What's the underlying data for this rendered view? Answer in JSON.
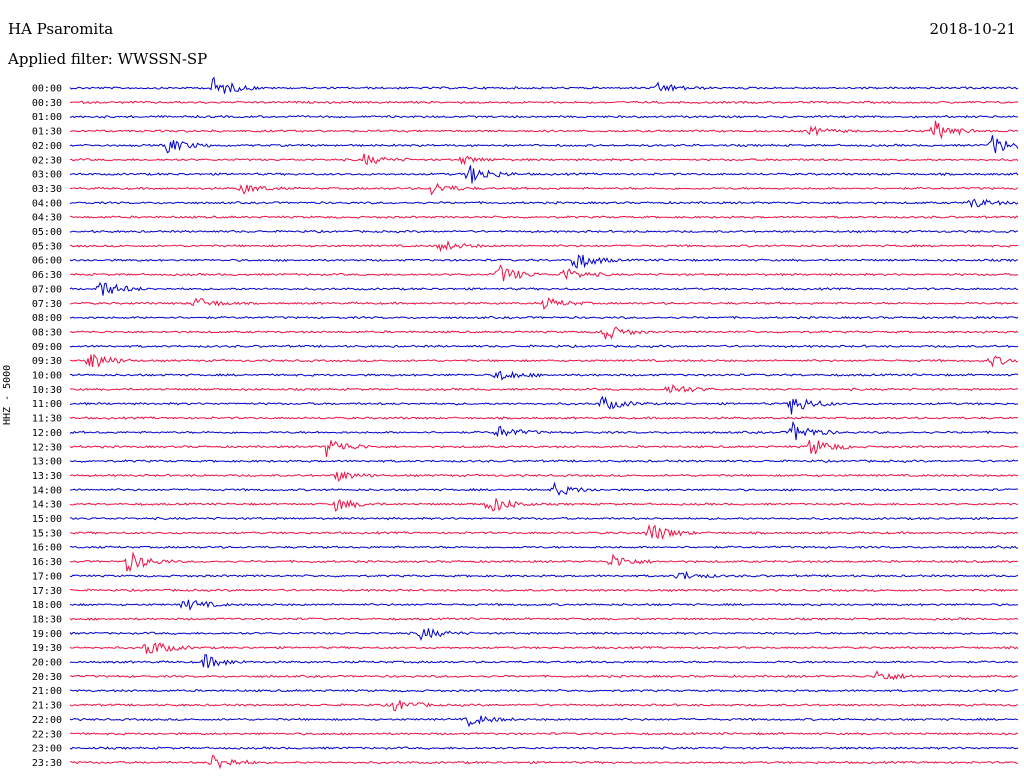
{
  "header": {
    "station": "HA Psaromita",
    "date": "2018-10-21",
    "filter": "Applied filter: WWSSN-SP"
  },
  "axis": {
    "ylabel": "HHZ - 5000"
  },
  "colors": {
    "even_trace": "#0000cc",
    "odd_trace": "#ee1144",
    "background": "#ffffff",
    "text": "#000000"
  },
  "chart_data": {
    "type": "line",
    "title": "HA Psaromita",
    "subtitle": "Applied filter: WWSSN-SP",
    "ylabel": "HHZ - 5000",
    "xlabel": "",
    "tick_labels": [
      "00:00",
      "00:30",
      "01:00",
      "01:30",
      "02:00",
      "02:30",
      "03:00",
      "03:30",
      "04:00",
      "04:30",
      "05:00",
      "05:30",
      "06:00",
      "06:30",
      "07:00",
      "07:30",
      "08:00",
      "08:30",
      "09:00",
      "09:30",
      "10:00",
      "10:30",
      "11:00",
      "11:30",
      "12:00",
      "12:30",
      "13:00",
      "13:30",
      "14:00",
      "14:30",
      "15:00",
      "15:30",
      "16:00",
      "16:30",
      "17:00",
      "17:30",
      "18:00",
      "18:30",
      "19:00",
      "19:30",
      "20:00",
      "20:30",
      "21:00",
      "21:30",
      "22:00",
      "22:30",
      "23:00",
      "23:30"
    ],
    "events": [
      {
        "row": "00:00",
        "t": 0.15,
        "amp": 1.0
      },
      {
        "row": "00:00",
        "t": 0.62,
        "amp": 0.5
      },
      {
        "row": "01:30",
        "t": 0.78,
        "amp": 0.4
      },
      {
        "row": "01:30",
        "t": 0.91,
        "amp": 1.0
      },
      {
        "row": "02:00",
        "t": 0.1,
        "amp": 0.8
      },
      {
        "row": "02:00",
        "t": 0.97,
        "amp": 1.0
      },
      {
        "row": "02:30",
        "t": 0.31,
        "amp": 0.5
      },
      {
        "row": "02:30",
        "t": 0.41,
        "amp": 0.4
      },
      {
        "row": "03:00",
        "t": 0.42,
        "amp": 1.0
      },
      {
        "row": "03:30",
        "t": 0.18,
        "amp": 0.5
      },
      {
        "row": "03:30",
        "t": 0.38,
        "amp": 0.6
      },
      {
        "row": "04:00",
        "t": 0.95,
        "amp": 0.5
      },
      {
        "row": "05:30",
        "t": 0.39,
        "amp": 0.5
      },
      {
        "row": "06:00",
        "t": 0.53,
        "amp": 1.0
      },
      {
        "row": "06:30",
        "t": 0.45,
        "amp": 1.0
      },
      {
        "row": "06:30",
        "t": 0.52,
        "amp": 0.6
      },
      {
        "row": "07:00",
        "t": 0.03,
        "amp": 0.9
      },
      {
        "row": "07:30",
        "t": 0.13,
        "amp": 0.6
      },
      {
        "row": "07:30",
        "t": 0.5,
        "amp": 0.5
      },
      {
        "row": "08:30",
        "t": 0.56,
        "amp": 0.9
      },
      {
        "row": "09:30",
        "t": 0.02,
        "amp": 0.9
      },
      {
        "row": "09:30",
        "t": 0.97,
        "amp": 0.5
      },
      {
        "row": "10:00",
        "t": 0.45,
        "amp": 0.6
      },
      {
        "row": "10:30",
        "t": 0.63,
        "amp": 0.6
      },
      {
        "row": "11:00",
        "t": 0.56,
        "amp": 0.7
      },
      {
        "row": "11:00",
        "t": 0.76,
        "amp": 1.0
      },
      {
        "row": "12:00",
        "t": 0.45,
        "amp": 0.6
      },
      {
        "row": "12:00",
        "t": 0.76,
        "amp": 1.0
      },
      {
        "row": "12:30",
        "t": 0.27,
        "amp": 0.9
      },
      {
        "row": "12:30",
        "t": 0.78,
        "amp": 0.9
      },
      {
        "row": "13:30",
        "t": 0.28,
        "amp": 0.5
      },
      {
        "row": "14:00",
        "t": 0.51,
        "amp": 0.6
      },
      {
        "row": "14:30",
        "t": 0.28,
        "amp": 0.6
      },
      {
        "row": "14:30",
        "t": 0.44,
        "amp": 1.0
      },
      {
        "row": "15:30",
        "t": 0.61,
        "amp": 1.0
      },
      {
        "row": "16:30",
        "t": 0.06,
        "amp": 1.0
      },
      {
        "row": "16:30",
        "t": 0.57,
        "amp": 0.7
      },
      {
        "row": "17:00",
        "t": 0.64,
        "amp": 0.5
      },
      {
        "row": "18:00",
        "t": 0.12,
        "amp": 0.6
      },
      {
        "row": "19:00",
        "t": 0.37,
        "amp": 0.6
      },
      {
        "row": "19:30",
        "t": 0.08,
        "amp": 0.9
      },
      {
        "row": "20:00",
        "t": 0.14,
        "amp": 0.7
      },
      {
        "row": "20:30",
        "t": 0.85,
        "amp": 0.6
      },
      {
        "row": "21:30",
        "t": 0.34,
        "amp": 0.6
      },
      {
        "row": "22:00",
        "t": 0.42,
        "amp": 0.6
      },
      {
        "row": "23:30",
        "t": 0.15,
        "amp": 0.8
      }
    ]
  }
}
